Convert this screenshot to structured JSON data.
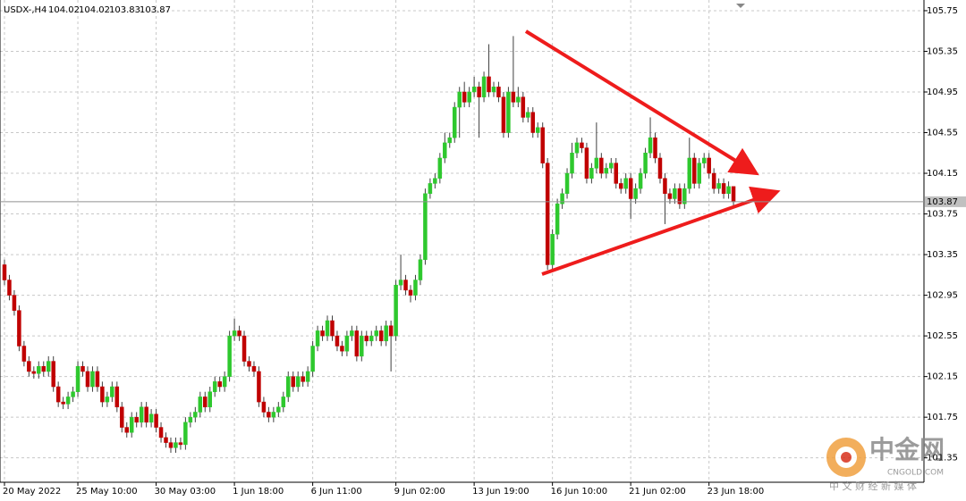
{
  "chart_data": {
    "type": "candlestick",
    "title": "USDX-,H4",
    "up_color": "#2ec82e",
    "down_color": "#c00000",
    "wick_color": "#404040",
    "grid": true,
    "ylim": [
      101.11,
      105.855
    ],
    "yticks": [
      101.35,
      101.75,
      102.15,
      102.55,
      102.95,
      103.35,
      103.75,
      104.15,
      104.55,
      104.95,
      105.35,
      105.75
    ],
    "categories": [
      "20 May 2022",
      null,
      null,
      null,
      null,
      null,
      null,
      null,
      null,
      null,
      null,
      null,
      null,
      null,
      null,
      "25 May 10:00",
      null,
      null,
      null,
      null,
      null,
      null,
      null,
      null,
      null,
      null,
      null,
      null,
      null,
      null,
      null,
      "30 May 03:00",
      null,
      null,
      null,
      null,
      null,
      null,
      null,
      null,
      null,
      null,
      null,
      null,
      null,
      null,
      null,
      "1 Jun 18:00",
      null,
      null,
      null,
      null,
      null,
      null,
      null,
      null,
      null,
      null,
      null,
      null,
      null,
      null,
      null,
      "6 Jun 11:00",
      null,
      null,
      null,
      null,
      null,
      null,
      null,
      null,
      null,
      null,
      null,
      null,
      null,
      null,
      null,
      null,
      "9 Jun 02:00",
      null,
      null,
      null,
      null,
      null,
      null,
      null,
      null,
      null,
      null,
      null,
      null,
      null,
      null,
      null,
      "13 Jun 19:00",
      null,
      null,
      null,
      null,
      null,
      null,
      null,
      null,
      null,
      null,
      null,
      null,
      null,
      null,
      null,
      "16 Jun 10:00",
      null,
      null,
      null,
      null,
      null,
      null,
      null,
      null,
      null,
      null,
      null,
      null,
      null,
      null,
      null,
      "21 Jun 02:00",
      null,
      null,
      null,
      null,
      null,
      null,
      null,
      null,
      null,
      null,
      null,
      null,
      null,
      null,
      null,
      "23 Jun 18:00",
      null,
      null,
      null,
      null,
      null
    ],
    "open": [
      103.25,
      103.1,
      102.95,
      102.8,
      102.45,
      102.3,
      102.2,
      102.18,
      102.25,
      102.2,
      102.3,
      102.05,
      101.9,
      101.88,
      101.95,
      102.0,
      102.25,
      102.2,
      102.05,
      102.2,
      102.05,
      101.9,
      101.95,
      102.05,
      101.85,
      101.65,
      101.6,
      101.75,
      101.7,
      101.85,
      101.7,
      101.78,
      101.65,
      101.55,
      101.5,
      101.45,
      101.5,
      101.48,
      101.7,
      101.75,
      101.8,
      101.95,
      101.85,
      102.0,
      102.1,
      102.05,
      102.15,
      102.55,
      102.6,
      102.55,
      102.3,
      102.25,
      102.2,
      101.9,
      101.8,
      101.75,
      101.8,
      101.85,
      101.95,
      102.15,
      102.05,
      102.15,
      102.1,
      102.2,
      102.45,
      102.6,
      102.55,
      102.7,
      102.55,
      102.45,
      102.4,
      102.55,
      102.6,
      102.35,
      102.55,
      102.5,
      102.55,
      102.6,
      102.5,
      102.65,
      102.55,
      103.05,
      103.1,
      103.0,
      102.95,
      103.1,
      103.3,
      103.95,
      104.05,
      104.1,
      104.3,
      104.45,
      104.5,
      104.8,
      104.95,
      104.85,
      104.95,
      105.0,
      104.9,
      105.1,
      104.95,
      105.0,
      104.9,
      104.55,
      104.95,
      104.85,
      104.9,
      104.7,
      104.75,
      104.55,
      104.6,
      104.25,
      103.25,
      103.55,
      103.85,
      103.95,
      104.15,
      104.35,
      104.45,
      104.4,
      104.1,
      104.2,
      104.3,
      104.15,
      104.2,
      104.25,
      104.05,
      104.0,
      104.1,
      103.9,
      104.0,
      104.15,
      104.35,
      104.5,
      104.3,
      104.1,
      103.95,
      103.9,
      104.0,
      103.85,
      104.0,
      104.3,
      104.05,
      104.25,
      104.3,
      104.15,
      104.0,
      104.05,
      103.95,
      104.02
    ],
    "high": [
      103.3,
      103.15,
      103.0,
      102.85,
      102.5,
      102.35,
      102.25,
      102.3,
      102.3,
      102.35,
      102.35,
      102.1,
      101.95,
      102.0,
      102.05,
      102.3,
      102.3,
      102.25,
      102.25,
      102.25,
      102.1,
      102.0,
      102.1,
      102.1,
      101.9,
      101.7,
      101.8,
      101.8,
      101.9,
      101.9,
      101.83,
      101.83,
      101.7,
      101.6,
      101.55,
      101.55,
      101.55,
      101.75,
      101.8,
      101.85,
      102.0,
      102.0,
      102.05,
      102.15,
      102.15,
      102.2,
      102.6,
      102.72,
      102.65,
      102.6,
      102.35,
      102.3,
      102.25,
      101.95,
      101.85,
      101.85,
      101.9,
      102.0,
      102.2,
      102.2,
      102.2,
      102.2,
      102.25,
      102.5,
      102.65,
      102.65,
      102.75,
      102.75,
      102.6,
      102.5,
      102.6,
      102.65,
      102.65,
      102.6,
      102.6,
      102.6,
      102.65,
      102.65,
      102.7,
      102.7,
      103.1,
      103.35,
      103.15,
      103.05,
      103.15,
      103.35,
      104.0,
      104.1,
      104.15,
      104.35,
      104.55,
      104.55,
      104.85,
      105.0,
      105.05,
      105.0,
      105.1,
      105.05,
      105.15,
      105.42,
      105.05,
      105.05,
      104.95,
      105.0,
      105.5,
      105.0,
      104.95,
      104.8,
      104.8,
      104.65,
      104.65,
      104.3,
      103.6,
      103.9,
      104.0,
      104.2,
      104.45,
      104.5,
      104.5,
      104.45,
      104.25,
      104.65,
      104.35,
      104.25,
      104.3,
      104.3,
      104.1,
      104.15,
      104.15,
      104.05,
      104.2,
      104.4,
      104.7,
      104.55,
      104.35,
      104.15,
      104.0,
      104.05,
      104.05,
      104.05,
      104.5,
      104.35,
      104.3,
      104.35,
      104.35,
      104.2,
      104.1,
      104.1,
      104.07,
      104.02
    ],
    "low": [
      103.05,
      102.9,
      102.75,
      102.4,
      102.25,
      102.15,
      102.13,
      102.13,
      102.15,
      102.15,
      102.0,
      101.85,
      101.83,
      101.83,
      101.9,
      101.95,
      102.15,
      102.0,
      102.0,
      102.0,
      101.85,
      101.85,
      101.9,
      101.8,
      101.6,
      101.55,
      101.55,
      101.65,
      101.65,
      101.65,
      101.65,
      101.6,
      101.5,
      101.45,
      101.4,
      101.4,
      101.43,
      101.43,
      101.65,
      101.7,
      101.75,
      101.8,
      101.8,
      101.95,
      102.0,
      102.0,
      102.1,
      102.5,
      102.5,
      102.25,
      102.2,
      102.15,
      101.85,
      101.75,
      101.7,
      101.7,
      101.75,
      101.8,
      101.9,
      102.0,
      102.0,
      102.05,
      102.05,
      102.15,
      102.4,
      102.5,
      102.5,
      102.5,
      102.4,
      102.35,
      102.35,
      102.5,
      102.3,
      102.3,
      102.45,
      102.45,
      102.5,
      102.45,
      102.45,
      102.2,
      102.5,
      103.0,
      102.95,
      102.88,
      102.9,
      103.05,
      103.25,
      103.9,
      104.0,
      104.05,
      104.25,
      104.4,
      104.45,
      104.5,
      104.8,
      104.8,
      104.9,
      104.5,
      104.85,
      104.9,
      104.9,
      104.85,
      104.5,
      104.5,
      104.8,
      104.8,
      104.65,
      104.65,
      104.5,
      104.5,
      104.2,
      103.2,
      103.2,
      103.5,
      103.8,
      103.9,
      104.1,
      104.3,
      104.35,
      104.05,
      104.05,
      104.15,
      104.1,
      104.1,
      104.15,
      104.0,
      103.95,
      103.95,
      103.7,
      103.85,
      103.95,
      104.1,
      104.3,
      104.25,
      104.05,
      103.65,
      103.85,
      103.85,
      103.8,
      103.8,
      103.95,
      104.0,
      104.0,
      104.2,
      104.1,
      103.95,
      103.95,
      103.9,
      103.9,
      103.83
    ],
    "close": [
      103.1,
      102.95,
      102.8,
      102.45,
      102.3,
      102.2,
      102.18,
      102.25,
      102.2,
      102.3,
      102.05,
      101.9,
      101.88,
      101.95,
      102.0,
      102.25,
      102.2,
      102.05,
      102.2,
      102.05,
      101.9,
      101.95,
      102.05,
      101.85,
      101.65,
      101.6,
      101.75,
      101.7,
      101.85,
      101.7,
      101.78,
      101.65,
      101.55,
      101.5,
      101.45,
      101.5,
      101.48,
      101.7,
      101.75,
      101.8,
      101.95,
      101.85,
      102.0,
      102.1,
      102.05,
      102.15,
      102.55,
      102.6,
      102.55,
      102.3,
      102.25,
      102.2,
      101.9,
      101.8,
      101.75,
      101.8,
      101.85,
      101.95,
      102.15,
      102.05,
      102.15,
      102.1,
      102.2,
      102.45,
      102.6,
      102.55,
      102.7,
      102.55,
      102.45,
      102.4,
      102.55,
      102.6,
      102.35,
      102.55,
      102.5,
      102.55,
      102.6,
      102.5,
      102.65,
      102.55,
      103.05,
      103.1,
      103.0,
      102.95,
      103.1,
      103.3,
      103.95,
      104.05,
      104.1,
      104.3,
      104.45,
      104.5,
      104.8,
      104.95,
      104.85,
      104.95,
      105.0,
      104.9,
      105.1,
      104.95,
      105.0,
      104.9,
      104.55,
      104.95,
      104.85,
      104.9,
      104.7,
      104.75,
      104.55,
      104.6,
      104.25,
      103.25,
      103.55,
      103.85,
      103.95,
      104.15,
      104.35,
      104.45,
      104.4,
      104.1,
      104.2,
      104.3,
      104.15,
      104.2,
      104.25,
      104.05,
      104.0,
      104.1,
      103.9,
      104.0,
      104.15,
      104.35,
      104.5,
      104.3,
      104.1,
      103.95,
      103.9,
      104.0,
      103.85,
      104.0,
      104.3,
      104.05,
      104.25,
      104.3,
      104.15,
      104.0,
      104.05,
      103.95,
      104.02,
      103.87
    ]
  },
  "watermark": {
    "brand": "中金网",
    "domain": "CNGOLD.COM",
    "slogan": "中 文 财 经 新 媒 体"
  }
}
